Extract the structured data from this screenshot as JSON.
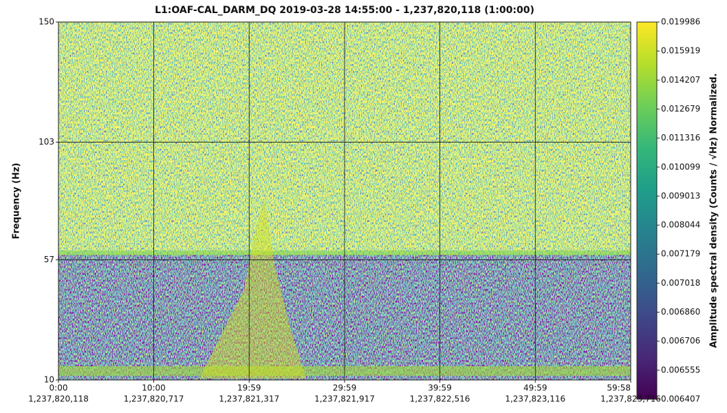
{
  "chart_data": {
    "type": "spectrogram",
    "title": "L1:OAF-CAL_DARM_DQ 2019-03-28 14:55:00 - 1,237,820,118 (1:00:00)",
    "y_label": "Frequency (Hz)",
    "colorbar_label": "Amplitude spectral density (Counts / √Hz) Normalized.",
    "colormap": "viridis",
    "grid": true,
    "xlim": [
      1237820118,
      1237823716
    ],
    "xticks": [
      {
        "value": 1237820118,
        "label": "0:00",
        "label2": "1,237,820,118"
      },
      {
        "value": 1237820717,
        "label": "10:00",
        "label2": "1,237,820,717"
      },
      {
        "value": 1237821317,
        "label": "19:59",
        "label2": "1,237,821,317"
      },
      {
        "value": 1237821917,
        "label": "29:59",
        "label2": "1,237,821,917"
      },
      {
        "value": 1237822516,
        "label": "39:59",
        "label2": "1,237,822,516"
      },
      {
        "value": 1237823116,
        "label": "49:59",
        "label2": "1,237,823,116"
      },
      {
        "value": 1237823716,
        "label": "59:58",
        "label2": "1,237,823,716"
      }
    ],
    "ylim": [
      10,
      150
    ],
    "yticks": [
      10,
      57,
      103,
      150
    ],
    "cticks": [
      0.006407,
      0.006555,
      0.006706,
      {
        "value": 0.00686,
        "label": "0.006860"
      },
      0.007018,
      0.007179,
      0.008044,
      0.009013,
      0.010099,
      0.011316,
      0.012679,
      0.014207,
      0.015919,
      0.019986
    ]
  }
}
